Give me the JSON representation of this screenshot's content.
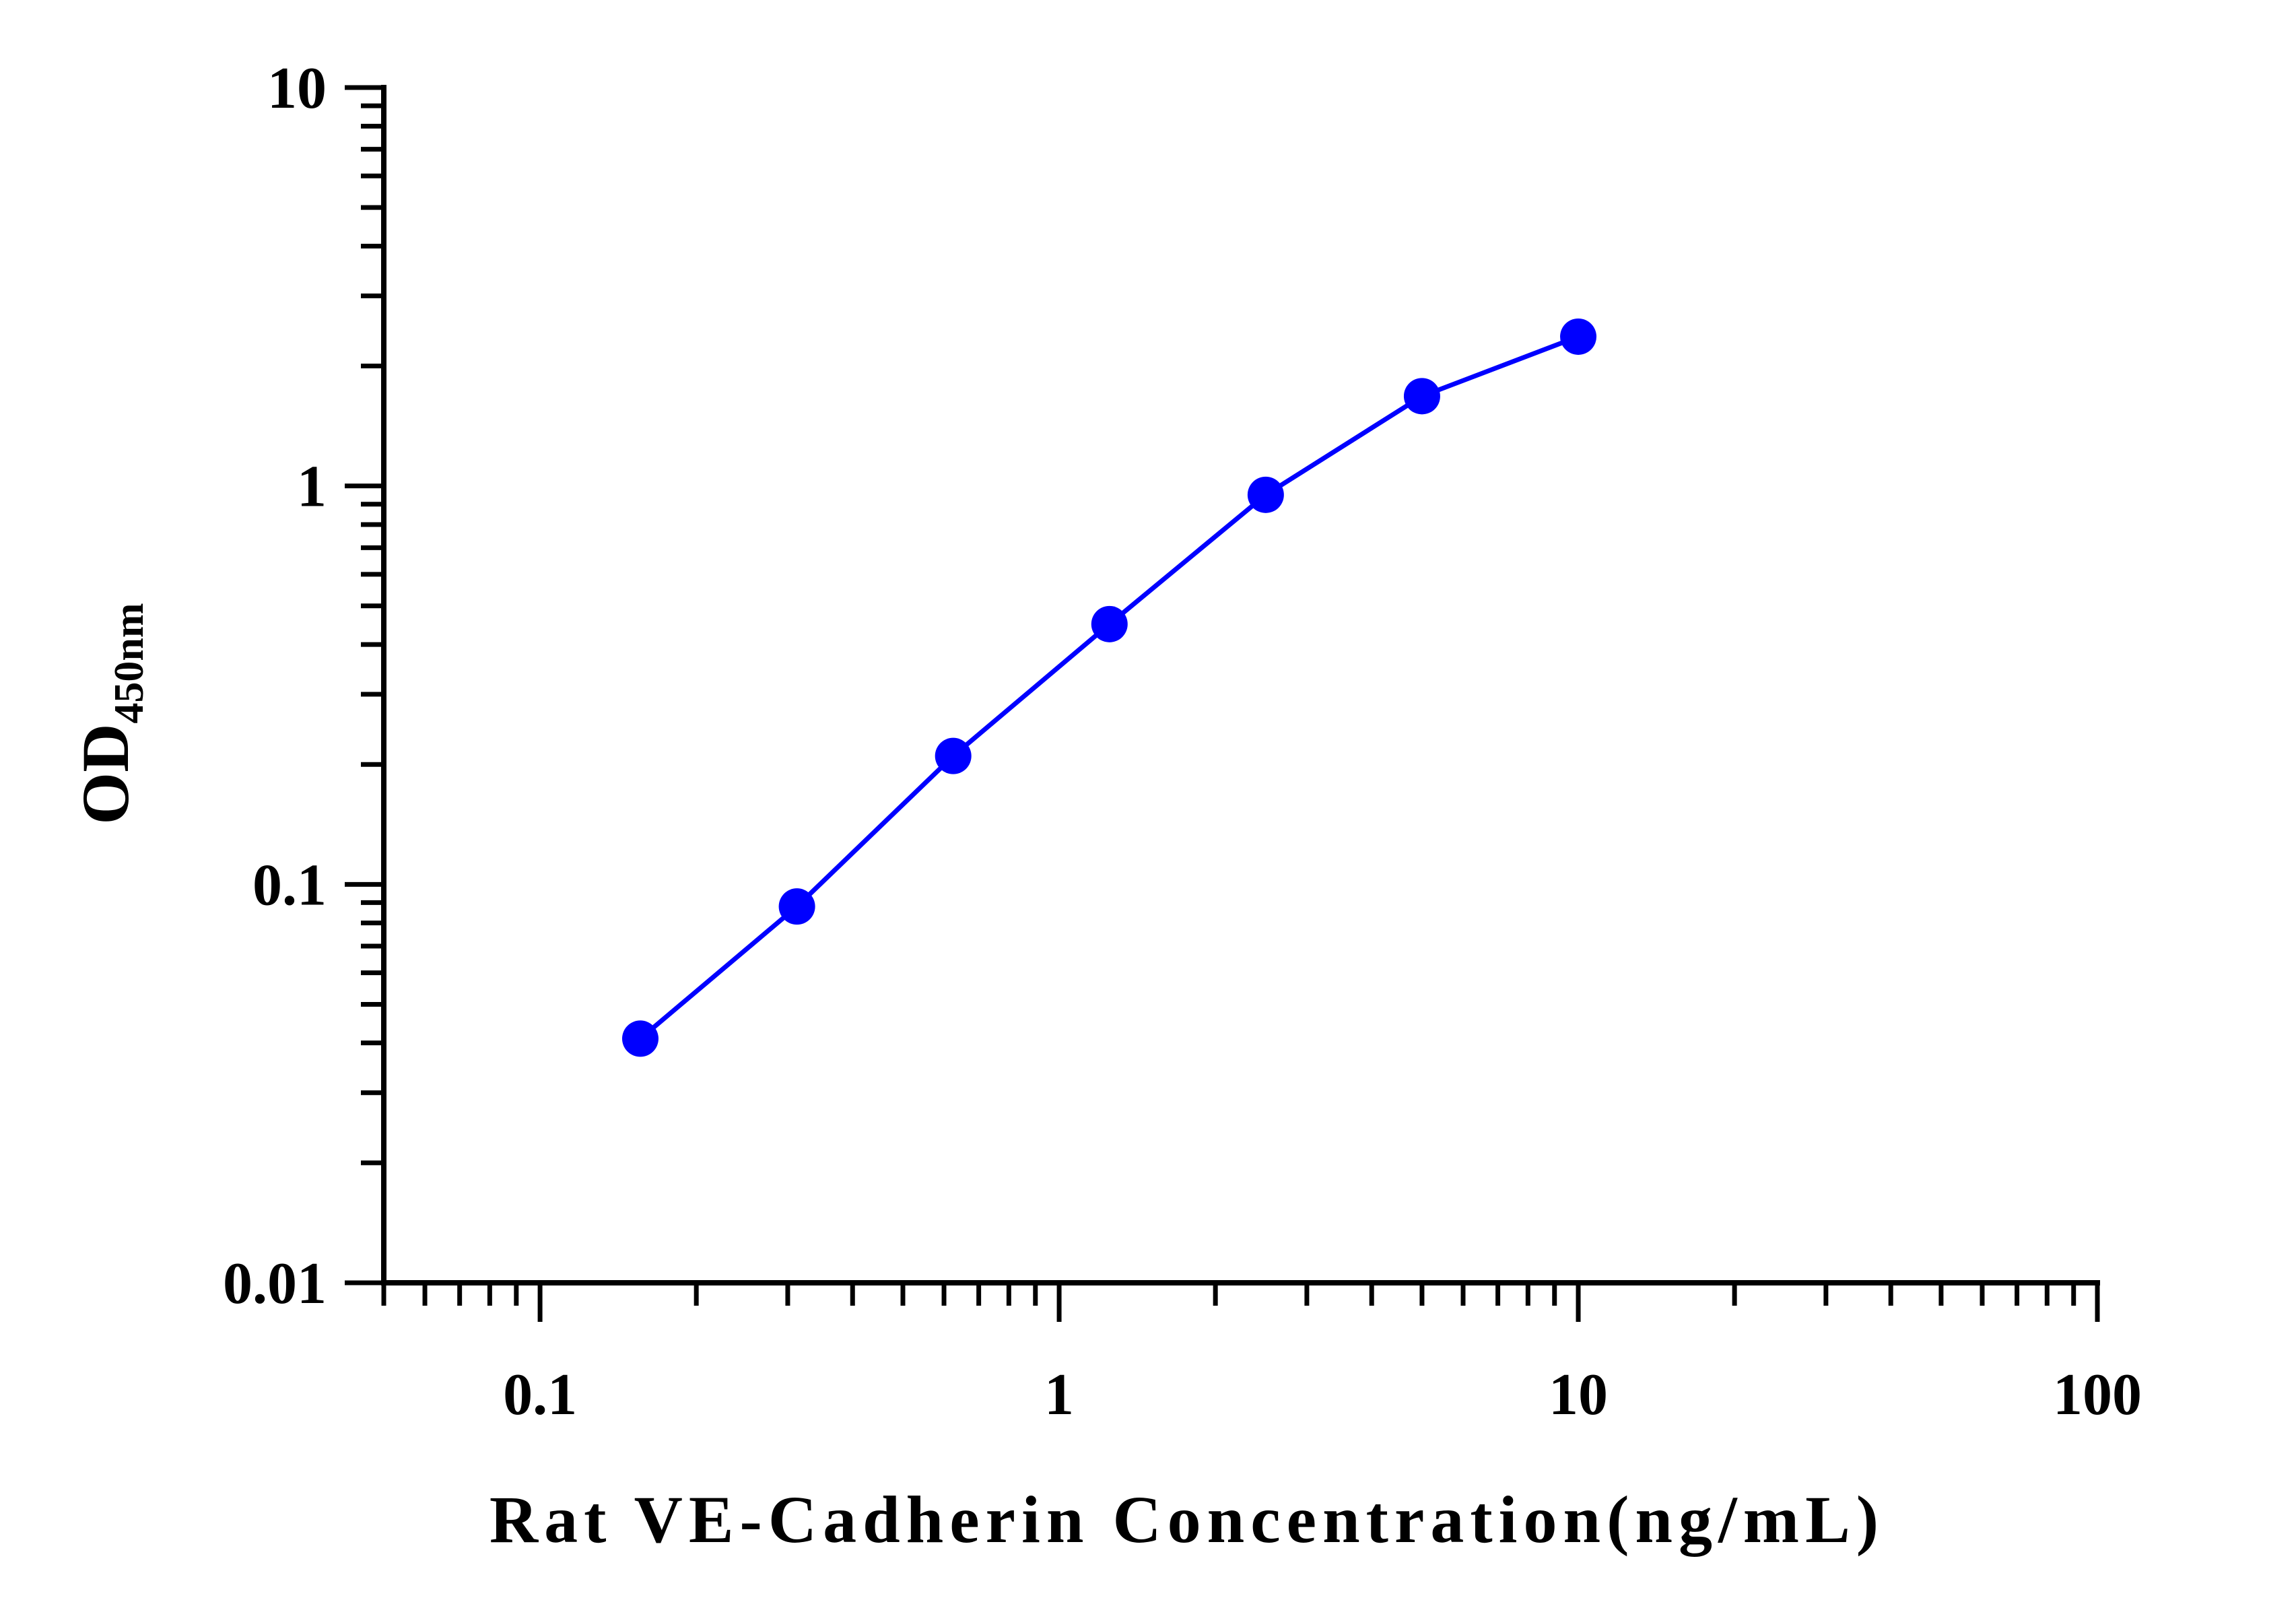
{
  "chart_data": {
    "type": "line",
    "xlabel": "Rat VE-Cadherin Concentration(ng/mL)",
    "ylabel": {
      "main": "OD",
      "subscript": "450nm"
    },
    "xscale": "log",
    "yscale": "log",
    "xlim": [
      0.05,
      100
    ],
    "ylim": [
      0.01,
      10
    ],
    "xticks": [
      0.1,
      1,
      10,
      100
    ],
    "xtick_labels": [
      "0.1",
      "1",
      "10",
      "100"
    ],
    "yticks": [
      0.01,
      0.1,
      1,
      10
    ],
    "ytick_labels": [
      "0.01",
      "0.1",
      "1",
      "10"
    ],
    "grid": false,
    "series": [
      {
        "color": "#0000ff",
        "marker": "circle",
        "points": [
          {
            "x": 0.156,
            "y": 0.041
          },
          {
            "x": 0.3125,
            "y": 0.088
          },
          {
            "x": 0.625,
            "y": 0.21
          },
          {
            "x": 1.25,
            "y": 0.45
          },
          {
            "x": 2.5,
            "y": 0.95
          },
          {
            "x": 5,
            "y": 1.68
          },
          {
            "x": 10,
            "y": 2.37
          }
        ]
      }
    ]
  }
}
